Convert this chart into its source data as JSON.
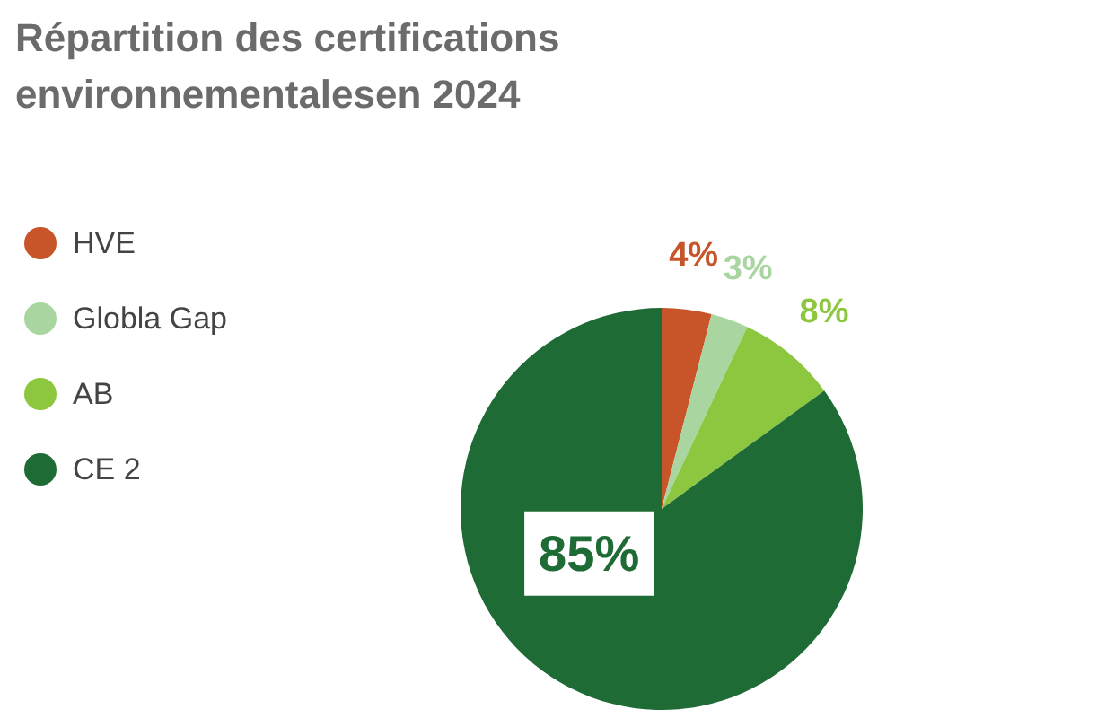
{
  "chart_data": {
    "type": "pie",
    "title": "Répartition des certifications\nenvironnementalesen 2024",
    "categories": [
      "HVE",
      "Globla Gap",
      "AB",
      "CE 2"
    ],
    "values": [
      4,
      3,
      8,
      85
    ],
    "colors": [
      "#c8552a",
      "#a9d6a0",
      "#8dc63f",
      "#1e6b35"
    ],
    "value_labels": [
      "4%",
      "3%",
      "8%",
      "85%"
    ],
    "legend": "left"
  }
}
